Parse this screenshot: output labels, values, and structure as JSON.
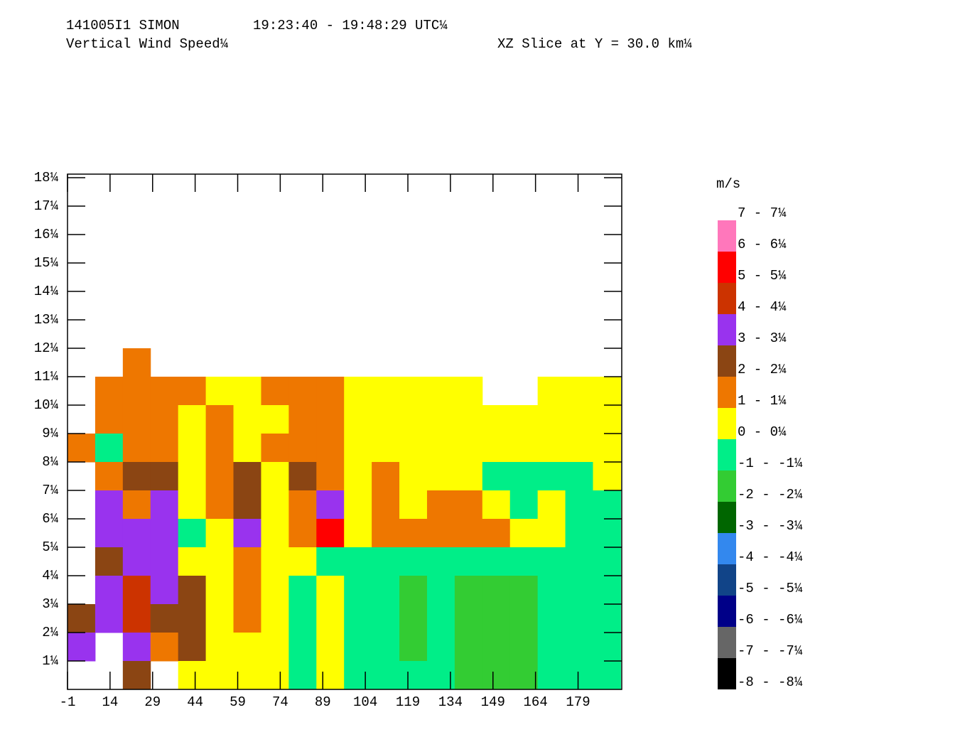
{
  "chart_data": {
    "type": "heatmap",
    "title": "141005I1 SIMON",
    "time_range": "19:23:40 - 19:48:29 UTC¼",
    "subtitle": "Vertical Wind Speed¼",
    "slice": "XZ Slice at Y = 30.0 km¼",
    "x": [
      3.875,
      13.625,
      23.375,
      33.125,
      42.875,
      52.625,
      62.375,
      72.125,
      81.875,
      91.625,
      101.375,
      111.125,
      120.875,
      130.625,
      140.375,
      150.125,
      159.875,
      169.625,
      179.375,
      189.125
    ],
    "y": [
      11.5,
      10.5,
      9.5,
      8.5,
      7.5,
      6.5,
      5.5,
      4.5,
      3.5,
      2.5,
      1.5,
      0.5
    ],
    "values": [
      [
        null,
        null,
        1,
        null,
        null,
        null,
        null,
        null,
        null,
        null,
        null,
        null,
        null,
        null,
        null,
        null,
        null,
        null,
        null,
        null
      ],
      [
        null,
        1,
        1,
        1,
        1,
        0,
        0,
        1,
        1,
        1,
        0,
        0,
        0,
        0,
        0,
        null,
        null,
        0,
        0,
        0
      ],
      [
        null,
        1,
        1,
        1,
        0,
        1,
        0,
        0,
        1,
        1,
        0,
        0,
        0,
        0,
        0,
        0,
        0,
        0,
        0,
        0
      ],
      [
        1,
        -1,
        1,
        1,
        0,
        1,
        0,
        1,
        1,
        1,
        0,
        0,
        0,
        0,
        0,
        0,
        0,
        0,
        0,
        0
      ],
      [
        null,
        1,
        2,
        2,
        0,
        1,
        2,
        0,
        2,
        1,
        0,
        1,
        0,
        0,
        0,
        -1,
        -1,
        -1,
        -1,
        0
      ],
      [
        null,
        3,
        1,
        3,
        0,
        1,
        2,
        0,
        1,
        3,
        0,
        1,
        0,
        1,
        1,
        0,
        -1,
        0,
        -1,
        -1
      ],
      [
        null,
        3,
        3,
        3,
        -1,
        0,
        3,
        0,
        1,
        5,
        0,
        1,
        1,
        1,
        1,
        1,
        0,
        0,
        -1,
        -1
      ],
      [
        null,
        2,
        3,
        3,
        0,
        0,
        1,
        0,
        0,
        -1,
        -1,
        -1,
        -1,
        -1,
        -1,
        -1,
        -1,
        -1,
        -1,
        -1
      ],
      [
        null,
        3,
        4,
        3,
        2,
        0,
        1,
        0,
        -1,
        0,
        -1,
        -1,
        -2,
        -1,
        -2,
        -2,
        -2,
        -1,
        -1,
        -1
      ],
      [
        2,
        3,
        4,
        2,
        2,
        0,
        1,
        0,
        -1,
        0,
        -1,
        -1,
        -2,
        -1,
        -2,
        -2,
        -2,
        -1,
        -1,
        -1
      ],
      [
        3,
        null,
        3,
        1,
        2,
        0,
        0,
        0,
        -1,
        0,
        -1,
        -1,
        -2,
        -1,
        -2,
        -2,
        -2,
        -1,
        -1,
        -1
      ],
      [
        null,
        null,
        2,
        null,
        0,
        0,
        0,
        0,
        -1,
        0,
        -1,
        -1,
        -1,
        -1,
        -2,
        -2,
        -2,
        -1,
        -1,
        -1
      ]
    ],
    "xlim": [
      -1,
      194.4
    ],
    "ylim": [
      0,
      18.125
    ],
    "xticks": [
      -1,
      14,
      29,
      44,
      59,
      74,
      89,
      104,
      119,
      134,
      149,
      164,
      179
    ],
    "yticks": [
      {
        "value": 18,
        "label": "18¼"
      },
      {
        "value": 17,
        "label": "17¼"
      },
      {
        "value": 16,
        "label": "16¼"
      },
      {
        "value": 15,
        "label": "15¼"
      },
      {
        "value": 14,
        "label": "14¼"
      },
      {
        "value": 13,
        "label": "13¼"
      },
      {
        "value": 12,
        "label": "12¼"
      },
      {
        "value": 11,
        "label": "11¼"
      },
      {
        "value": 10,
        "label": "10¼"
      },
      {
        "value": 9,
        "label": "9¼"
      },
      {
        "value": 8,
        "label": "8¼"
      },
      {
        "value": 7,
        "label": "7¼"
      },
      {
        "value": 6,
        "label": "6¼"
      },
      {
        "value": 5,
        "label": "5¼"
      },
      {
        "value": 4,
        "label": "4¼"
      },
      {
        "value": 3,
        "label": "3¼"
      },
      {
        "value": 2,
        "label": "2¼"
      },
      {
        "value": 1,
        "label": "1¼"
      }
    ],
    "colorbar_title": "m/s",
    "colorbar_edges": [
      7,
      6,
      5,
      4,
      3,
      2,
      1,
      0,
      -1,
      -2,
      -3,
      -4,
      -5,
      -6,
      -7,
      -8
    ],
    "colorbar_labels": [
      "7 - 7¼",
      "6 - 6¼",
      "5 - 5¼",
      "4 - 4¼",
      "3 - 3¼",
      "2 - 2¼",
      "1 - 1¼",
      "0 - 0¼",
      "-1 - -1¼",
      "-2 - -2¼",
      "-3 - -3¼",
      "-4 - -4¼",
      "-5 - -5¼",
      "-6 - -6¼",
      "-7 - -7¼",
      "-8 - -8¼"
    ],
    "colorbar_colors": [
      "#ff77bb",
      "#ff0000",
      "#cc3300",
      "#9933ee",
      "#8b4513",
      "#ee7700",
      "#ffff00",
      "#00ee88",
      "#33cc33",
      "#006600",
      "#3388ee",
      "#114488",
      "#000088",
      "#666666",
      "#000000"
    ]
  }
}
